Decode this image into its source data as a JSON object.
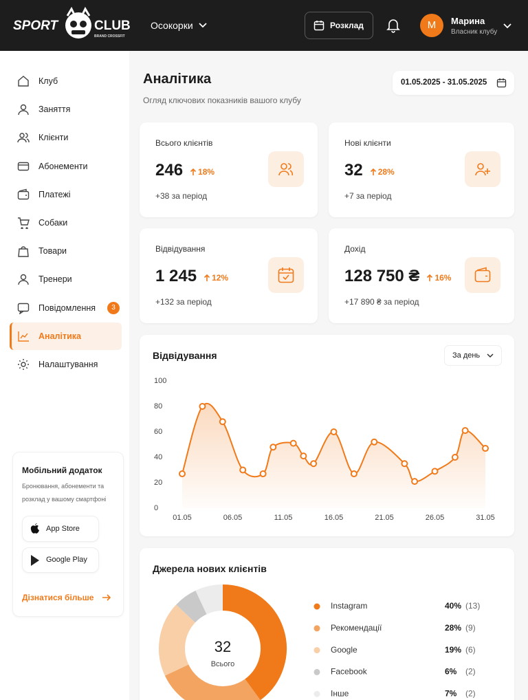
{
  "header": {
    "logo_left": "SPORT",
    "logo_right": "CLUB",
    "logo_sub": "BRAND CROSSFIT",
    "location": "Осокорки",
    "schedule_button": "Розклад",
    "avatar": "M",
    "user_name": "Марина",
    "user_role": "Власник клубу"
  },
  "sidebar": {
    "nav": [
      {
        "label": "Клуб"
      },
      {
        "label": "Заняття"
      },
      {
        "label": "Клієнти"
      },
      {
        "label": "Абонементи"
      },
      {
        "label": "Платежі"
      },
      {
        "label": "Собаки"
      },
      {
        "label": "Товари"
      },
      {
        "label": "Тренери"
      },
      {
        "label": "Повідомлення",
        "badge": 3
      },
      {
        "label": "Аналітика",
        "active": true
      },
      {
        "label": "Налаштування"
      }
    ],
    "promo": {
      "title": "Мобільний додаток",
      "text_1": "Бронювання, абонементи та",
      "text_2": "розклад у вашому смартфоні",
      "app_store": "App Store",
      "google_play": "Google Play",
      "link": "Дізнатися більше"
    }
  },
  "page": {
    "title": "Аналітика",
    "subtitle": "Огляд ключових показників вашого клубу",
    "date_range": "01.05.2025 - 31.05.2025"
  },
  "stats": [
    {
      "label": "Всього клієнтів",
      "value": "246",
      "change": "18%",
      "note": "+38 за період"
    },
    {
      "label": "Нові клієнти",
      "value": "32",
      "change": "28%",
      "note": "+7 за період"
    },
    {
      "label": "Відвідування",
      "value": "1 245",
      "change": "12%",
      "note": "+132 за період"
    },
    {
      "label": "Дохід",
      "value": "128 750 ₴",
      "change": "16%",
      "note": "+17 890 ₴ за період"
    }
  ],
  "attendance_chart": {
    "type": "line",
    "title": "Відвідування",
    "period": "За день",
    "color": "#f07a1a",
    "x": [
      1,
      3,
      5,
      7,
      9,
      10,
      12,
      13,
      14,
      16,
      18,
      20,
      23,
      24,
      26,
      28,
      29,
      31
    ],
    "values": [
      27,
      80,
      68,
      30,
      27,
      48,
      51,
      41,
      35,
      60,
      27,
      52,
      35,
      21,
      29,
      40,
      61,
      47
    ],
    "xlim": [
      1,
      31
    ],
    "ylim": [
      0,
      100
    ],
    "yticks": [
      0,
      20,
      40,
      60,
      80,
      100
    ],
    "xticks": [
      {
        "value": 1,
        "label": "01.05"
      },
      {
        "value": 6,
        "label": "06.05"
      },
      {
        "value": 11,
        "label": "11.05"
      },
      {
        "value": 16,
        "label": "16.05"
      },
      {
        "value": 21,
        "label": "21.05"
      },
      {
        "value": 26,
        "label": "26.05"
      },
      {
        "value": 31,
        "label": "31.05"
      }
    ]
  },
  "sources_chart": {
    "type": "pie",
    "title": "Джерела нових клієнтів",
    "total": 32,
    "total_label": "Всього",
    "categories": [
      "Instagram",
      "Рекомендації",
      "Google",
      "Facebook",
      "Інше"
    ],
    "values": [
      40,
      28,
      19,
      6,
      7
    ],
    "value_labels": [
      "40%",
      "28%",
      "19%",
      "6%",
      "7%"
    ],
    "count_labels": [
      "(13)",
      "(9)",
      "(6)",
      "(2)",
      "(2)"
    ],
    "colors": [
      "#f07a1a",
      "#f4a461",
      "#f9cfa8",
      "#c9c9c9",
      "#ececec"
    ]
  }
}
